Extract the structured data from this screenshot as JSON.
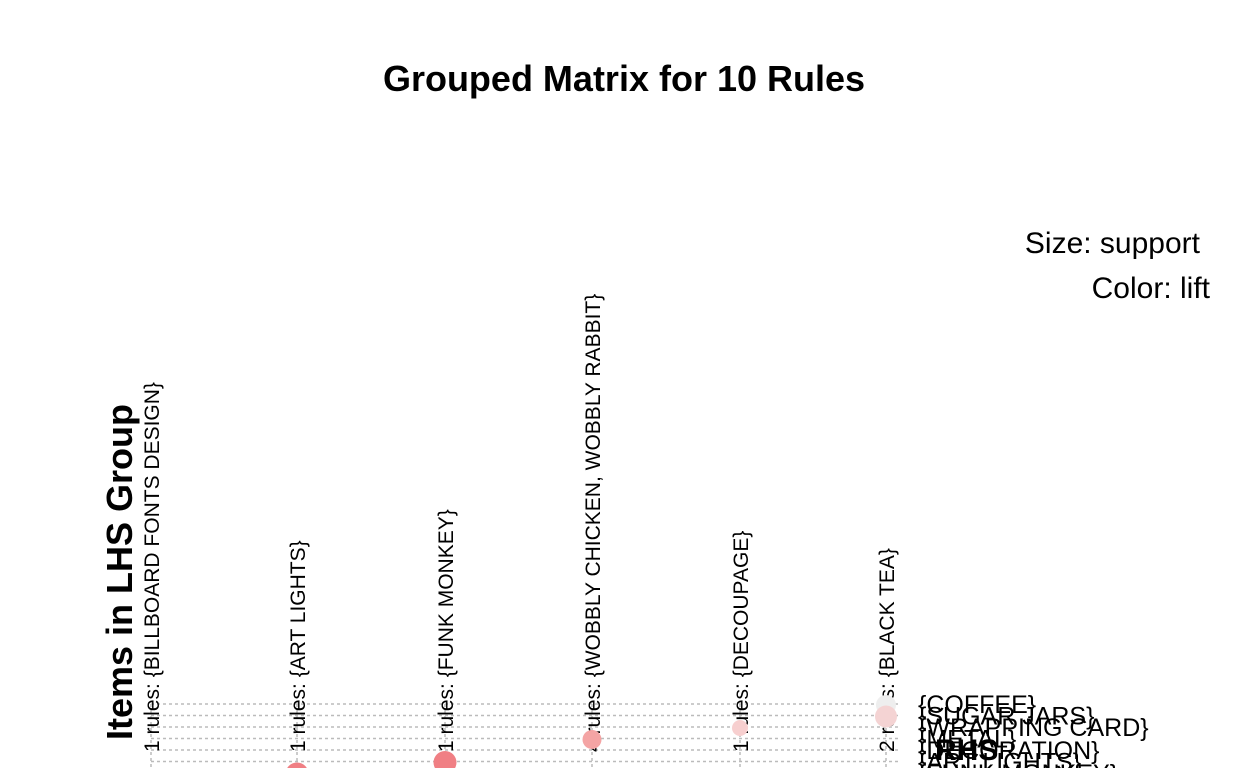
{
  "chart_data": {
    "type": "scatter",
    "title": "Grouped Matrix for 10 Rules",
    "ylabel": "Items in LHS Group",
    "xlabel": "RHS",
    "legend": {
      "size_label": "Size: support",
      "color_label": "Color: lift",
      "placement": "top-right"
    },
    "grid": true,
    "lhs_groups": [
      "1 rules: {BILLBOARD FONTS DESIGN}",
      "1 rules: {ART LIGHTS}",
      "1 rules: {FUNK MONKEY}",
      "4 rules: {WOBBLY CHICKEN, WOBBLY RABBIT}",
      "1 rules: {DECOUPAGE}",
      "2 rules: {BLACK TEA}"
    ],
    "rhs_items": [
      "{COFFEE}",
      "{SUGAR JARS}",
      "{WRAPPING CARD}",
      "{METAL}",
      "{DECORATION}",
      "{ART LIGHTS}",
      "{FUNK MONKEY}"
    ],
    "points": [
      {
        "lhs": 5,
        "rhs": 0,
        "color": "#eeeeee",
        "size": 0.6
      },
      {
        "lhs": 5,
        "rhs": 1,
        "color": "#f4d3d3",
        "size": 0.7
      },
      {
        "lhs": 4,
        "rhs": 2,
        "color": "#f7cfcf",
        "size": 0.4
      },
      {
        "lhs": 3,
        "rhs": 3,
        "color": "#f4a4a4",
        "size": 0.55
      },
      {
        "lhs": 2,
        "rhs": 5,
        "color": "#f07f84",
        "size": 0.75
      },
      {
        "lhs": 1,
        "rhs": 6,
        "color": "#f07f84",
        "size": 0.75
      }
    ]
  }
}
